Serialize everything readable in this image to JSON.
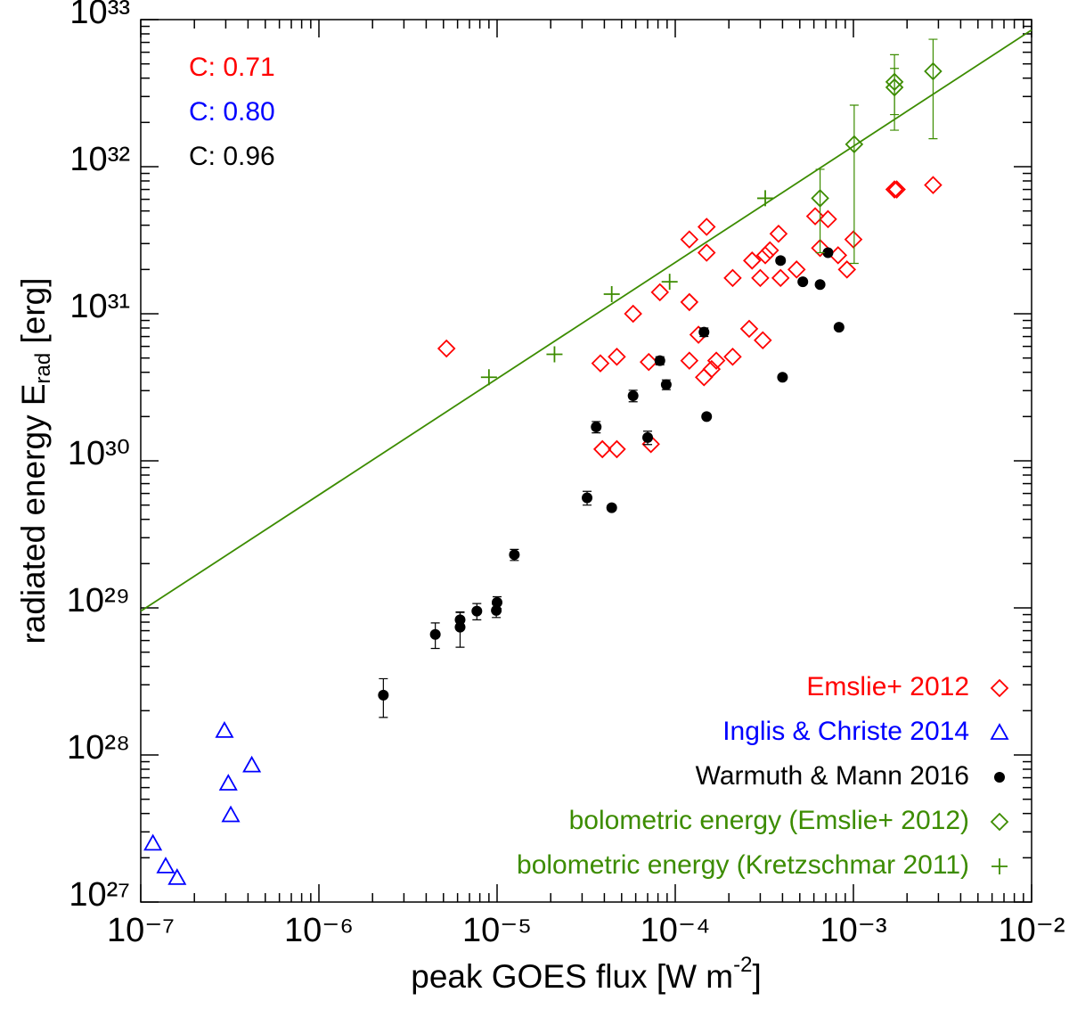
{
  "chart_data": {
    "type": "scatter",
    "xlabel": {
      "text": "peak GOES flux [W m",
      "sup": "-2",
      "end": "]"
    },
    "ylabel": {
      "text": "radiated energy E",
      "sub": "rad",
      "end": " [erg]"
    },
    "xscale": "log",
    "yscale": "log",
    "xlim": [
      1e-07,
      0.01
    ],
    "ylim": [
      1e+27,
      1e+33
    ],
    "xticks": [
      {
        "value": 1e-07,
        "label": "10⁻⁷"
      },
      {
        "value": 1e-06,
        "label": "10⁻⁶"
      },
      {
        "value": 1e-05,
        "label": "10⁻⁵"
      },
      {
        "value": 0.0001,
        "label": "10⁻⁴"
      },
      {
        "value": 0.001,
        "label": "10⁻³"
      },
      {
        "value": 0.01,
        "label": "10⁻²"
      }
    ],
    "yticks": [
      {
        "value": 1e+27,
        "label": "10²⁷"
      },
      {
        "value": 1e+28,
        "label": "10²⁸"
      },
      {
        "value": 1e+29,
        "label": "10²⁹"
      },
      {
        "value": 1e+30,
        "label": "10³⁰"
      },
      {
        "value": 1e+31,
        "label": "10³¹"
      },
      {
        "value": 1e+32,
        "label": "10³²"
      },
      {
        "value": 1e+33,
        "label": "10³³"
      }
    ],
    "legend": "lower right",
    "annotations": [
      {
        "text": "C: 0.71",
        "color": "#ff0000"
      },
      {
        "text": "C: 0.80",
        "color": "#0000ff"
      },
      {
        "text": "C: 0.96",
        "color": "#000000"
      }
    ],
    "fit": {
      "color": "#3c8c00",
      "x": [
        1e-07,
        0.01
      ],
      "y": [
        9.5e+28,
        8.5e+32
      ]
    },
    "series": [
      {
        "name": "Emslie+ 2012",
        "color": "#ff0000",
        "marker": "diamond",
        "x": [
          5.2e-06,
          3.8e-05,
          4.7e-05,
          3.9e-05,
          4.7e-05,
          5.8e-05,
          7.1e-05,
          7.3e-05,
          8.2e-05,
          0.00012,
          0.00015,
          0.00015,
          0.00012,
          0.00012,
          0.000135,
          0.000145,
          0.00016,
          0.00017,
          0.00021,
          0.00021,
          0.00026,
          0.00027,
          0.00031,
          0.0003,
          0.00032,
          0.00034,
          0.00038,
          0.00039,
          0.00048,
          0.00061,
          0.00065,
          0.00072,
          0.00082,
          0.00092,
          0.001,
          0.0017,
          0.00175,
          0.0028
        ],
        "y": [
          5.8e+30,
          4.6e+30,
          5.1e+30,
          1.2e+30,
          1.2e+30,
          1e+31,
          4.7e+30,
          1.3e+30,
          1.4e+31,
          3.2e+31,
          3.9e+31,
          2.6e+31,
          1.2e+31,
          4.8e+30,
          7.2e+30,
          3.7e+30,
          4.2e+30,
          4.8e+30,
          5.1e+30,
          1.75e+31,
          7.9e+30,
          2.3e+31,
          6.6e+30,
          1.75e+31,
          2.5e+31,
          2.7e+31,
          3.5e+31,
          1.75e+31,
          2e+31,
          4.6e+31,
          2.8e+31,
          4.4e+31,
          2.5e+31,
          2e+31,
          3.2e+31,
          7e+31,
          7e+31,
          7.5e+31
        ]
      },
      {
        "name": "Inglis & Christe 2014",
        "color": "#0000ff",
        "marker": "triangle",
        "x": [
          1.17e-07,
          1.38e-07,
          1.6e-07,
          2.95e-07,
          3.1e-07,
          3.2e-07,
          4.2e-07
        ],
        "y": [
          2.5e+27,
          1.75e+27,
          1.46e+27,
          1.46e+28,
          6.4e+27,
          3.9e+27,
          8.5e+27
        ]
      },
      {
        "name": "Warmuth & Mann 2016",
        "color": "#000000",
        "marker": "dot",
        "x": [
          2.3e-06,
          4.5e-06,
          6.2e-06,
          6.2e-06,
          7.7e-06,
          9.9e-06,
          1e-05,
          1.25e-05,
          3.2e-05,
          3.6e-05,
          4.4e-05,
          5.8e-05,
          7e-05,
          8.2e-05,
          8.9e-05,
          0.000145,
          0.00015,
          0.00039,
          0.0004,
          0.00052,
          0.00065,
          0.00072,
          0.00083
        ],
        "y": [
          2.55e+28,
          6.6e+28,
          8.3e+28,
          7.4e+28,
          9.5e+28,
          9.6e+28,
          1.09e+29,
          2.3e+29,
          5.6e+29,
          1.7e+30,
          4.8e+29,
          2.77e+30,
          1.44e+30,
          4.8e+30,
          3.3e+30,
          7.5e+30,
          2e+30,
          2.3e+31,
          3.7e+30,
          1.65e+31,
          1.58e+31,
          2.6e+31,
          8.1e+30
        ],
        "errors": [
          7.5e+27,
          1.3e+28,
          1e+28,
          2e+28,
          1.2e+28,
          1e+28,
          1e+28,
          2e+28,
          6e+28,
          1.5e+29,
          2e+28,
          2.5e+29,
          1.5e+29,
          3e+29,
          2.5e+29,
          5e+29,
          5e+28,
          1e+30,
          1e+29,
          5e+29,
          5e+29,
          8e+29,
          2e+29
        ]
      },
      {
        "name": "bolometric energy (Emslie+ 2012)",
        "color": "#3c8c00",
        "marker": "diamond",
        "x": [
          0.00065,
          0.00101,
          0.0017,
          0.0017,
          0.0028
        ],
        "y": [
          6.1e+31,
          1.42e+32,
          3.77e+32,
          3.46e+32,
          4.45e+32
        ],
        "errors": [
          3.5e+31,
          1.2e+32,
          2e+32,
          1.2e+32,
          2.9e+32
        ]
      },
      {
        "name": "bolometric energy (Kretzschmar 2011)",
        "color": "#3c8c00",
        "marker": "plus",
        "x": [
          9e-06,
          2.1e-05,
          4.4e-05,
          9.3e-05,
          0.00032
        ],
        "y": [
          3.7e+30,
          5.3e+30,
          1.36e+31,
          1.65e+31,
          6.1e+31
        ]
      }
    ]
  }
}
